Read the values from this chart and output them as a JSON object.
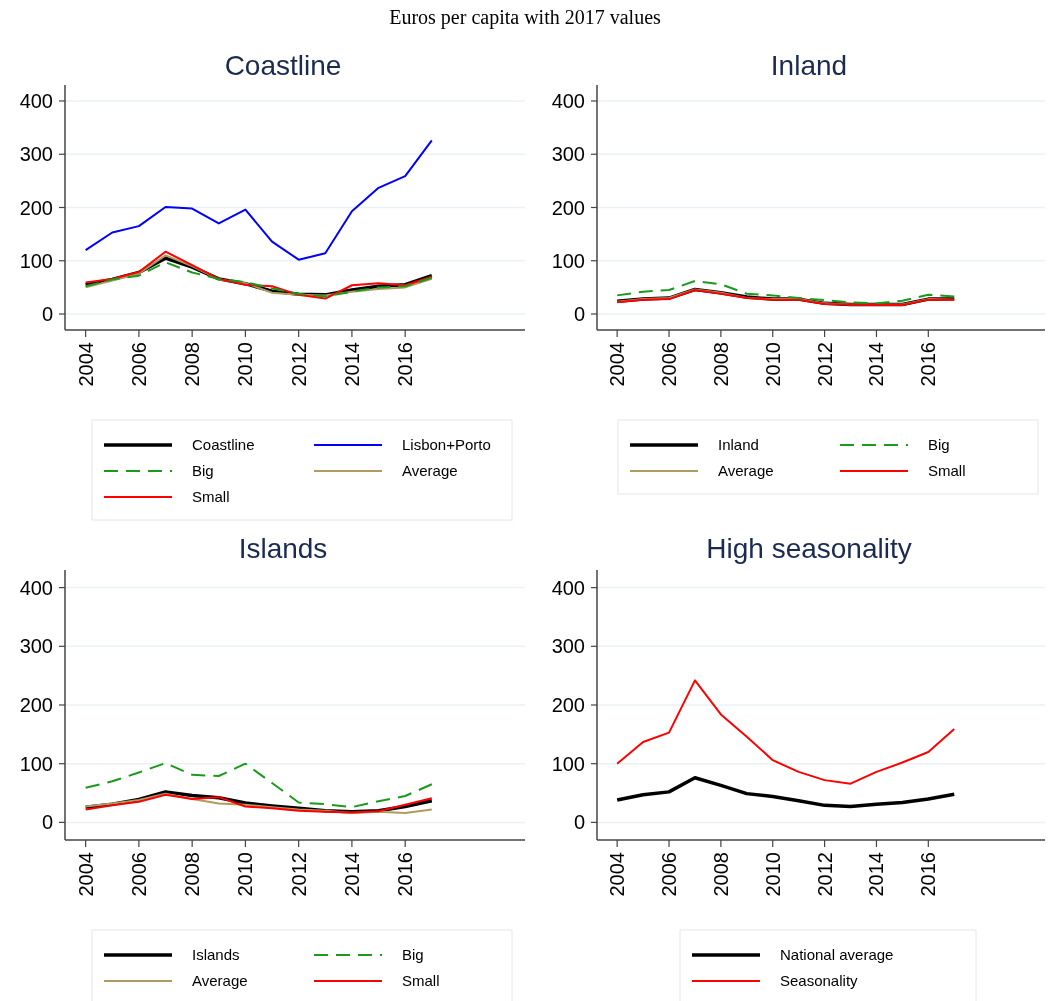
{
  "chart_data": [
    {
      "type": "line",
      "title": "Coastline",
      "annotations": [
        "Euros per capita with 2017 values"
      ],
      "x": [
        2004,
        2005,
        2006,
        2007,
        2008,
        2009,
        2010,
        2011,
        2012,
        2013,
        2014,
        2015,
        2016,
        2017
      ],
      "xlim": [
        2003.3,
        2020.5
      ],
      "xticks": [
        2004,
        2006,
        2008,
        2010,
        2012,
        2014,
        2016
      ],
      "ylim": [
        -30,
        430
      ],
      "yticks": [
        0,
        100,
        200,
        300,
        400
      ],
      "grid": "y",
      "legend": "bottom",
      "series": [
        {
          "name": "Coastline",
          "color": "#000000",
          "values": [
            55,
            65,
            78,
            105,
            88,
            66,
            57,
            43,
            37,
            36,
            45,
            52,
            55,
            72
          ]
        },
        {
          "name": "Lisbon+Porto",
          "color": "#0000ff",
          "values": [
            120,
            153,
            165,
            201,
            198,
            170,
            196,
            136,
            102,
            114,
            193,
            237,
            259,
            326
          ]
        },
        {
          "name": "Big",
          "color": "#1a9a1a",
          "line_style": "dashed",
          "values": [
            52,
            65,
            72,
            97,
            78,
            66,
            60,
            48,
            38,
            33,
            42,
            50,
            52,
            68
          ]
        },
        {
          "name": "Average",
          "color": "#b09a60",
          "values": [
            50,
            63,
            76,
            110,
            90,
            65,
            58,
            40,
            36,
            35,
            42,
            47,
            50,
            66
          ]
        },
        {
          "name": "Small",
          "color": "#ff0000",
          "values": [
            59,
            66,
            79,
            117,
            92,
            66,
            55,
            52,
            36,
            29,
            54,
            58,
            54,
            70
          ]
        }
      ]
    },
    {
      "type": "line",
      "title": "Inland",
      "x": [
        2004,
        2005,
        2006,
        2007,
        2008,
        2009,
        2010,
        2011,
        2012,
        2013,
        2014,
        2015,
        2016,
        2017
      ],
      "xlim": [
        2003.3,
        2020.5
      ],
      "xticks": [
        2004,
        2006,
        2008,
        2010,
        2012,
        2014,
        2016
      ],
      "ylim": [
        -30,
        430
      ],
      "yticks": [
        0,
        100,
        200,
        300,
        400
      ],
      "grid": "y",
      "legend": "bottom",
      "series": [
        {
          "name": "Inland",
          "color": "#000000",
          "values": [
            24,
            28,
            30,
            46,
            40,
            32,
            28,
            28,
            20,
            18,
            18,
            18,
            28,
            28
          ]
        },
        {
          "name": "Big",
          "color": "#1a9a1a",
          "line_style": "dashed",
          "values": [
            35,
            42,
            45,
            62,
            56,
            38,
            35,
            30,
            26,
            22,
            20,
            25,
            36,
            33
          ]
        },
        {
          "name": "Average",
          "color": "#b09a60",
          "values": [
            23,
            28,
            30,
            46,
            40,
            30,
            28,
            28,
            20,
            18,
            18,
            18,
            28,
            27
          ]
        },
        {
          "name": "Small",
          "color": "#ff0000",
          "values": [
            22,
            27,
            28,
            45,
            38,
            30,
            27,
            27,
            19,
            18,
            17,
            17,
            27,
            27
          ]
        }
      ]
    },
    {
      "type": "line",
      "title": "Islands",
      "x": [
        2004,
        2005,
        2006,
        2007,
        2008,
        2009,
        2010,
        2011,
        2012,
        2013,
        2014,
        2015,
        2016,
        2017
      ],
      "xlim": [
        2003.3,
        2020.5
      ],
      "xticks": [
        2004,
        2006,
        2008,
        2010,
        2012,
        2014,
        2016
      ],
      "ylim": [
        -30,
        430
      ],
      "yticks": [
        0,
        100,
        200,
        300,
        400
      ],
      "grid": "y",
      "legend": "bottom",
      "series": [
        {
          "name": "Islands",
          "color": "#000000",
          "values": [
            26,
            31,
            39,
            52,
            46,
            42,
            33,
            28,
            24,
            20,
            18,
            20,
            27,
            37
          ]
        },
        {
          "name": "Big",
          "color": "#1a9a1a",
          "line_style": "dashed",
          "values": [
            59,
            70,
            85,
            101,
            81,
            79,
            100,
            67,
            34,
            31,
            26,
            36,
            45,
            65
          ]
        },
        {
          "name": "Average",
          "color": "#b09a60",
          "values": [
            27,
            32,
            38,
            49,
            40,
            32,
            30,
            26,
            22,
            20,
            16,
            18,
            16,
            22
          ]
        },
        {
          "name": "Small",
          "color": "#ff0000",
          "values": [
            22,
            29,
            35,
            47,
            40,
            43,
            27,
            24,
            20,
            18,
            17,
            19,
            30,
            41
          ]
        }
      ]
    },
    {
      "type": "line",
      "title": "High seasonality",
      "x": [
        2004,
        2005,
        2006,
        2007,
        2008,
        2009,
        2010,
        2011,
        2012,
        2013,
        2014,
        2015,
        2016,
        2017
      ],
      "xlim": [
        2003.3,
        2020.5
      ],
      "xticks": [
        2004,
        2006,
        2008,
        2010,
        2012,
        2014,
        2016
      ],
      "ylim": [
        -30,
        430
      ],
      "yticks": [
        0,
        100,
        200,
        300,
        400
      ],
      "grid": "y",
      "legend": "bottom",
      "series": [
        {
          "name": "National average",
          "color": "#000000",
          "values": [
            38,
            47,
            52,
            76,
            63,
            49,
            44,
            37,
            29,
            27,
            31,
            34,
            40,
            48
          ]
        },
        {
          "name": "Seasonality",
          "color": "#ff0000",
          "values": [
            100,
            137,
            153,
            242,
            184,
            146,
            106,
            86,
            72,
            66,
            86,
            102,
            120,
            159
          ]
        }
      ]
    }
  ]
}
